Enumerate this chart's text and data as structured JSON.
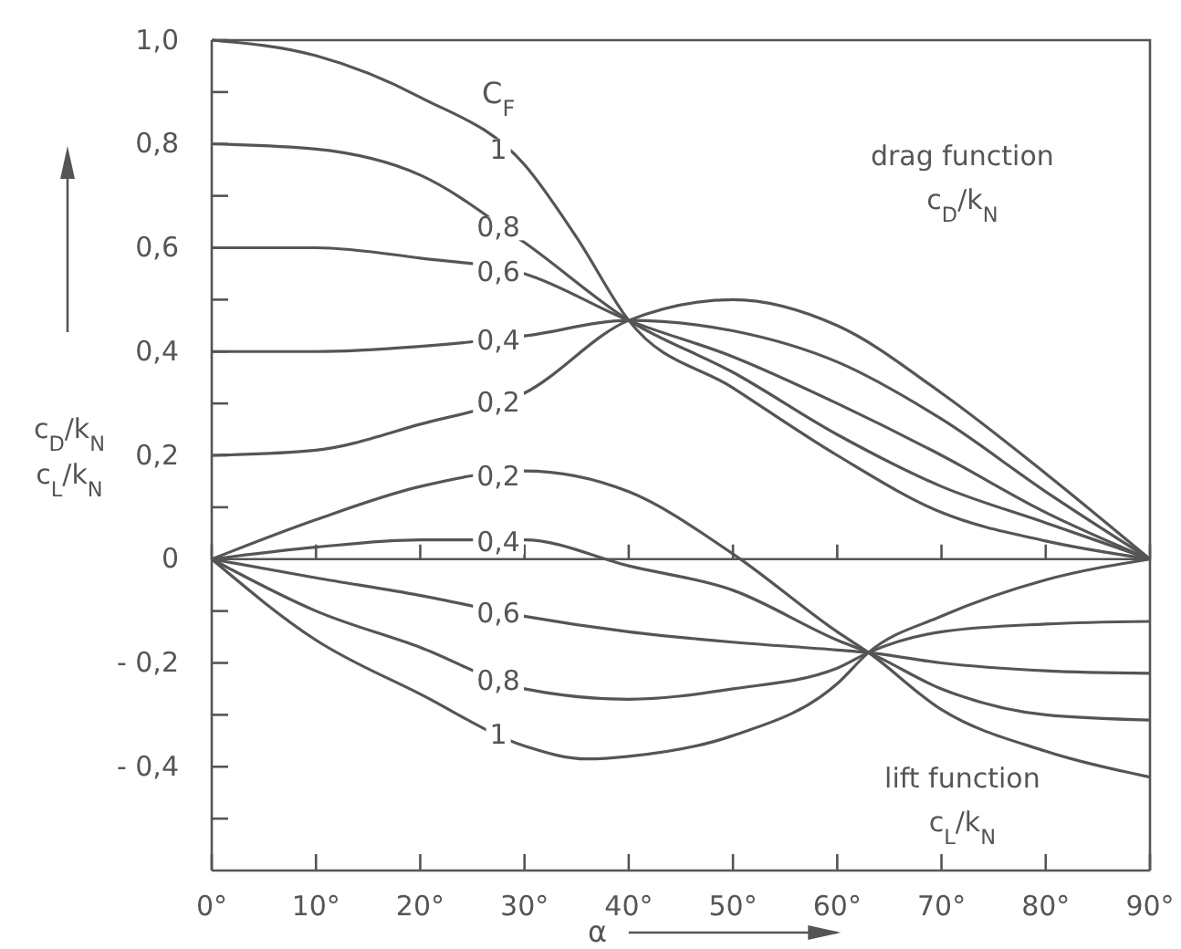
{
  "chart_data": {
    "type": "line",
    "xlabel": "α",
    "ylabel": "c$_{D}$/k$_{N}$\nc$_{L}$/k$_{N}$",
    "legend_title": "C$_{F}$",
    "annotations": [
      "drag function\nc$_{D}$/k$_{N}$",
      "lift function\nc$_{L}$/k$_{N}$"
    ],
    "xlim": [
      0,
      90
    ],
    "ylim": [
      -0.6,
      1.0
    ],
    "xticks": [
      {
        "value": 0,
        "label": "0°"
      },
      {
        "value": 10,
        "label": "10°"
      },
      {
        "value": 20,
        "label": "20°"
      },
      {
        "value": 30,
        "label": "30°"
      },
      {
        "value": 40,
        "label": "40°"
      },
      {
        "value": 50,
        "label": "50°"
      },
      {
        "value": 60,
        "label": "60°"
      },
      {
        "value": 70,
        "label": "70°"
      },
      {
        "value": 80,
        "label": "80°"
      },
      {
        "value": 90,
        "label": "90°"
      }
    ],
    "yticks": [
      {
        "value": -0.5,
        "label": null
      },
      {
        "value": -0.4,
        "label": "- 0,4"
      },
      {
        "value": -0.3,
        "label": null
      },
      {
        "value": -0.2,
        "label": "- 0,2"
      },
      {
        "value": -0.1,
        "label": null
      },
      {
        "value": 0,
        "label": "0"
      },
      {
        "value": 0.1,
        "label": null
      },
      {
        "value": 0.2,
        "label": "0,2"
      },
      {
        "value": 0.3,
        "label": null
      },
      {
        "value": 0.4,
        "label": "0,4"
      },
      {
        "value": 0.5,
        "label": null
      },
      {
        "value": 0.6,
        "label": "0,6"
      },
      {
        "value": 0.7,
        "label": null
      },
      {
        "value": 0.8,
        "label": "0,8"
      },
      {
        "value": 0.9,
        "label": null
      },
      {
        "value": 1.0,
        "label": "1,0"
      }
    ],
    "ref_lines": [
      {
        "axis": "y",
        "value": 0
      }
    ],
    "series": [
      {
        "name": "1",
        "color": "#555555",
        "x": [
          0,
          10,
          20,
          30,
          35,
          40,
          50,
          60,
          70,
          80,
          90
        ],
        "values": [
          1.0,
          0.97,
          0.89,
          0.76,
          0.62,
          0.46,
          0.33,
          0.2,
          0.09,
          0.035,
          0
        ]
      },
      {
        "name": "0,8",
        "color": "#555555",
        "x": [
          0,
          10,
          20,
          30,
          40,
          50,
          60,
          70,
          80,
          90
        ],
        "values": [
          0.8,
          0.79,
          0.74,
          0.61,
          0.46,
          0.36,
          0.24,
          0.14,
          0.07,
          0
        ]
      },
      {
        "name": "0,6",
        "color": "#555555",
        "x": [
          0,
          10,
          20,
          30,
          40,
          50,
          60,
          70,
          80,
          90
        ],
        "values": [
          0.6,
          0.6,
          0.58,
          0.55,
          0.46,
          0.39,
          0.3,
          0.2,
          0.09,
          0
        ]
      },
      {
        "name": "0,4",
        "color": "#555555",
        "x": [
          0,
          10,
          20,
          30,
          40,
          50,
          60,
          70,
          80,
          90
        ],
        "values": [
          0.4,
          0.4,
          0.41,
          0.43,
          0.46,
          0.44,
          0.38,
          0.27,
          0.13,
          0
        ]
      },
      {
        "name": "0,2",
        "color": "#555555",
        "x": [
          0,
          10,
          20,
          30,
          40,
          50,
          60,
          70,
          80,
          90
        ],
        "values": [
          0.2,
          0.21,
          0.26,
          0.32,
          0.46,
          0.5,
          0.45,
          0.32,
          0.165,
          0
        ]
      },
      {
        "name": "0,2",
        "color": "#555555",
        "x": [
          0,
          10,
          20,
          30,
          40,
          50,
          60,
          63,
          70,
          80,
          90
        ],
        "values": [
          0,
          0.076,
          0.14,
          0.17,
          0.13,
          0.01,
          -0.14,
          -0.18,
          -0.29,
          -0.37,
          -0.42
        ]
      },
      {
        "name": "0,4",
        "color": "#555555",
        "x": [
          0,
          10,
          20,
          30,
          40,
          50,
          60,
          63,
          70,
          80,
          90
        ],
        "values": [
          0,
          0.023,
          0.037,
          0.037,
          -0.013,
          -0.06,
          -0.156,
          -0.18,
          -0.25,
          -0.3,
          -0.31
        ]
      },
      {
        "name": "0,6",
        "color": "#555555",
        "x": [
          0,
          10,
          20,
          30,
          40,
          50,
          60,
          63,
          70,
          80,
          90
        ],
        "values": [
          0,
          -0.036,
          -0.07,
          -0.11,
          -0.14,
          -0.16,
          -0.175,
          -0.18,
          -0.2,
          -0.215,
          -0.22
        ]
      },
      {
        "name": "0,8",
        "color": "#555555",
        "x": [
          0,
          10,
          20,
          30,
          40,
          50,
          60,
          63,
          70,
          80,
          90
        ],
        "values": [
          0,
          -0.1,
          -0.17,
          -0.25,
          -0.27,
          -0.25,
          -0.21,
          -0.18,
          -0.14,
          -0.125,
          -0.12
        ]
      },
      {
        "name": "1",
        "color": "#555555",
        "x": [
          0,
          10,
          20,
          30,
          36,
          40,
          50,
          60,
          63,
          70,
          80,
          90
        ],
        "values": [
          0,
          -0.156,
          -0.26,
          -0.36,
          -0.385,
          -0.38,
          -0.34,
          -0.24,
          -0.18,
          -0.11,
          -0.04,
          0
        ]
      }
    ]
  }
}
